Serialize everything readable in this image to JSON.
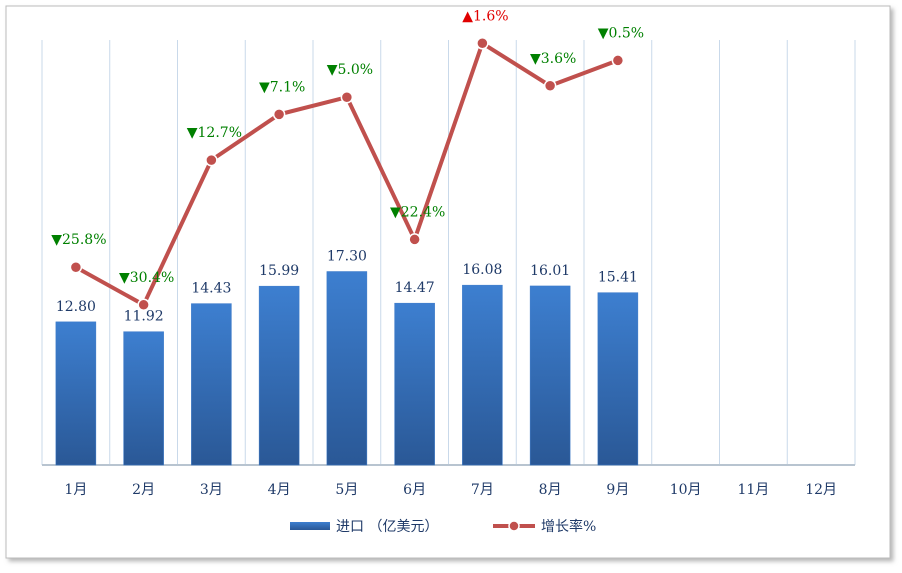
{
  "chart_data": {
    "type": "bar_line",
    "categories": [
      "1月",
      "2月",
      "3月",
      "4月",
      "5月",
      "6月",
      "7月",
      "8月",
      "9月",
      "10月",
      "11月",
      "12月"
    ],
    "series": [
      {
        "name": "进口 （亿美元）",
        "type": "bar",
        "color": "#3a78c8",
        "values": [
          12.8,
          11.92,
          14.43,
          15.99,
          17.3,
          14.47,
          16.08,
          16.01,
          15.41,
          null,
          null,
          null
        ],
        "value_labels": [
          "12.80",
          "11.92",
          "14.43",
          "15.99",
          "17.30",
          "14.47",
          "16.08",
          "16.01",
          "15.41",
          null,
          null,
          null
        ]
      },
      {
        "name": "增长率%",
        "type": "line",
        "color": "#c0504d",
        "axis": "y2",
        "values": [
          -25.8,
          -30.4,
          -12.7,
          -7.1,
          -5.0,
          -22.4,
          1.6,
          -3.6,
          -0.5,
          null,
          null,
          null
        ],
        "value_labels": [
          "▼25.8%",
          "▼30.4%",
          "▼12.7%",
          "▼7.1%",
          "▼5.0%",
          "▼22.4%",
          "▲1.6%",
          "▼3.6%",
          "▼0.5%",
          null,
          null,
          null
        ]
      }
    ],
    "ylim": [
      0,
      38
    ],
    "y2lim": [
      -50,
      2
    ],
    "up_color": "#e00000",
    "down_color": "#008000"
  }
}
